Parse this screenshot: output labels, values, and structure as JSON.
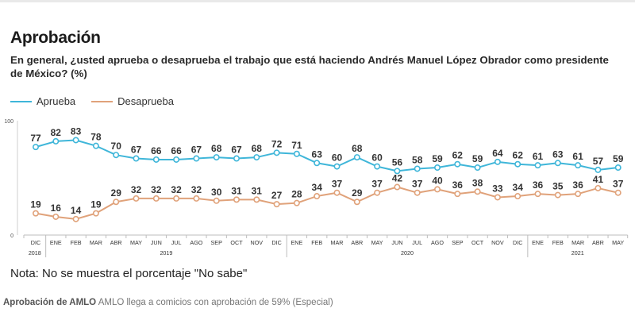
{
  "title": "Aprobación",
  "question": "En general, ¿usted aprueba o desaprueba el trabajo que está haciendo Andrés Manuel López Obrador como presidente de México? (%)",
  "note": "Nota: No se muestra el porcentaje \"No sabe\"",
  "caption": {
    "bold": "Aprobación de AMLO",
    "text": " AMLO llega a comicios con aprobación de 59% (Especial)"
  },
  "colors": {
    "aprueba": "#3fb6d9",
    "desaprueba": "#e0a27a"
  },
  "chart_data": {
    "type": "line",
    "ylim": [
      0,
      100
    ],
    "yticks": [
      0,
      100
    ],
    "grid": false,
    "legend_position": "top-left",
    "categories": [
      "DIC",
      "ENE",
      "FEB",
      "MAR",
      "ABR",
      "MAY",
      "JUN",
      "JUL",
      "AGO",
      "SEP",
      "OCT",
      "NOV",
      "DIC",
      "ENE",
      "FEB",
      "MAR",
      "ABR",
      "MAY",
      "JUN",
      "JUL",
      "AGO",
      "SEP",
      "OCT",
      "NOV",
      "DIC",
      "ENE",
      "FEB",
      "MAR",
      "ABR",
      "MAY"
    ],
    "year_groups": [
      {
        "label": "2018",
        "start": 0,
        "end": 0
      },
      {
        "label": "2019",
        "start": 1,
        "end": 12
      },
      {
        "label": "2020",
        "start": 13,
        "end": 24
      },
      {
        "label": "2021",
        "start": 25,
        "end": 29
      }
    ],
    "series": [
      {
        "name": "Aprueba",
        "values": [
          77,
          82,
          83,
          78,
          70,
          67,
          66,
          66,
          67,
          68,
          67,
          68,
          72,
          71,
          63,
          60,
          68,
          60,
          56,
          58,
          59,
          62,
          59,
          64,
          62,
          61,
          63,
          61,
          57,
          59
        ]
      },
      {
        "name": "Desaprueba",
        "values": [
          19,
          16,
          14,
          19,
          29,
          32,
          32,
          32,
          32,
          30,
          31,
          31,
          27,
          28,
          34,
          37,
          29,
          37,
          42,
          37,
          40,
          36,
          38,
          33,
          34,
          36,
          35,
          36,
          41,
          37
        ]
      }
    ]
  }
}
